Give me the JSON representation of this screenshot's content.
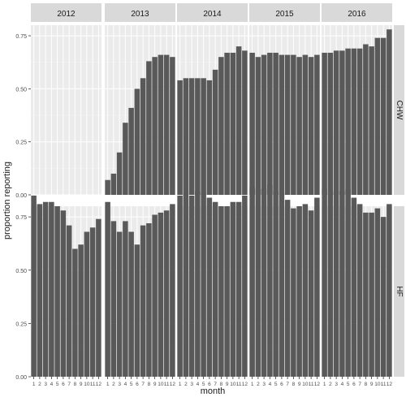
{
  "chart_data": {
    "type": "bar",
    "xlabel": "month",
    "ylabel": "proportion reporting",
    "ylim": [
      0,
      0.8
    ],
    "y_ticks": [
      0,
      0.25,
      0.5,
      0.75
    ],
    "y_tick_labels": [
      "0.00",
      "0.25",
      "0.50",
      "0.75"
    ],
    "months": [
      "1",
      "2",
      "3",
      "4",
      "5",
      "6",
      "7",
      "8",
      "9",
      "10",
      "11",
      "12"
    ],
    "years": [
      "2012",
      "2013",
      "2014",
      "2015",
      "2016"
    ],
    "row_labels": [
      "CHW",
      "HF"
    ],
    "grid": true,
    "colors": {
      "bar": "#595959",
      "panel_bg": "#ebebeb",
      "grid_major": "#ffffff",
      "strip_bg": "#d9d9d9",
      "text": "#1a1a1a",
      "tick_text": "#4d4d4d"
    },
    "series": [
      {
        "facet_row": "CHW",
        "values": {
          "2012": [],
          "2013": [
            0.07,
            0.1,
            0.2,
            0.34,
            0.41,
            0.5,
            0.55,
            0.63,
            0.65,
            0.66,
            0.66,
            0.65
          ],
          "2014": [
            0.54,
            0.55,
            0.55,
            0.55,
            0.55,
            0.54,
            0.59,
            0.65,
            0.67,
            0.67,
            0.7,
            0.68
          ],
          "2015": [
            0.67,
            0.65,
            0.66,
            0.67,
            0.67,
            0.66,
            0.66,
            0.66,
            0.65,
            0.66,
            0.65,
            0.66
          ],
          "2016": [
            0.67,
            0.67,
            0.68,
            0.68,
            0.69,
            0.69,
            0.69,
            0.71,
            0.7,
            0.74,
            0.74,
            0.78
          ]
        }
      },
      {
        "facet_row": "HF",
        "values": {
          "2012": [
            0.85,
            0.81,
            0.82,
            0.82,
            0.8,
            0.78,
            0.71,
            0.6,
            0.62,
            0.68,
            0.7,
            0.74
          ],
          "2013": [
            0.82,
            0.73,
            0.68,
            0.73,
            0.68,
            0.62,
            0.71,
            0.72,
            0.76,
            0.77,
            0.78,
            0.81
          ],
          "2014": [
            0.85,
            0.86,
            0.85,
            0.87,
            0.86,
            0.84,
            0.82,
            0.8,
            0.8,
            0.82,
            0.82,
            0.85
          ],
          "2015": [
            0.89,
            0.88,
            0.88,
            0.9,
            0.87,
            0.86,
            0.83,
            0.79,
            0.8,
            0.81,
            0.78,
            0.84
          ],
          "2016": [
            0.88,
            0.86,
            0.87,
            0.87,
            0.88,
            0.84,
            0.81,
            0.77,
            0.77,
            0.79,
            0.75,
            0.81
          ]
        }
      }
    ]
  }
}
